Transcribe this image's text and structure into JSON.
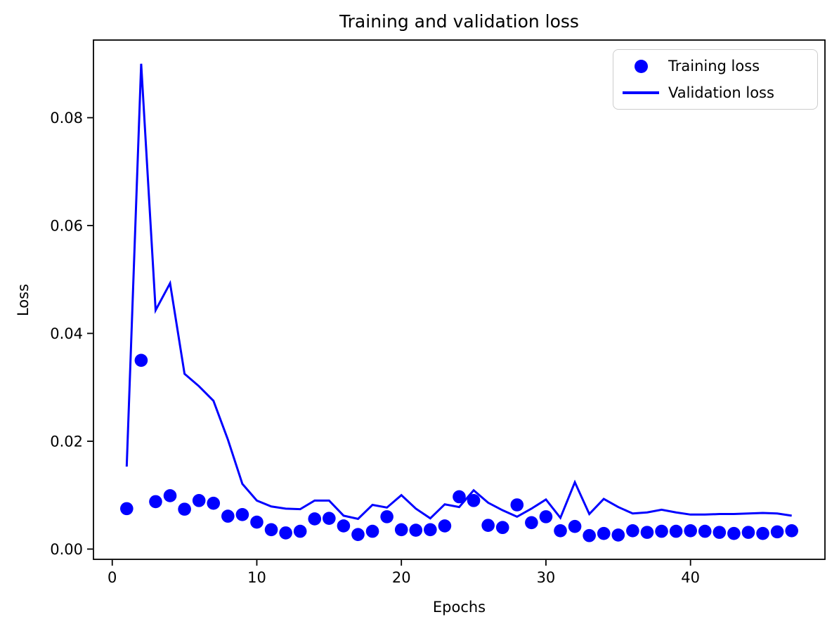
{
  "title": "Training and validation loss",
  "accent_color": "#0000ff",
  "axis_color": "#000000",
  "legend": {
    "entries": [
      {
        "label": "Training loss",
        "marker": "dot"
      },
      {
        "label": "Validation loss",
        "marker": "line"
      }
    ],
    "position": "upper right"
  },
  "chart_data": {
    "type": "scatter+line",
    "title": "Training and validation loss",
    "xlabel": "Epochs",
    "ylabel": "Loss",
    "xlim": [
      -1.3,
      49.3
    ],
    "ylim": [
      -0.0019,
      0.0944
    ],
    "x_ticks": [
      0,
      10,
      20,
      30,
      40
    ],
    "x_tick_labels": [
      "0",
      "10",
      "20",
      "30",
      "40"
    ],
    "y_ticks": [
      0.0,
      0.02,
      0.04,
      0.06,
      0.08
    ],
    "y_tick_labels": [
      "0.00",
      "0.02",
      "0.04",
      "0.06",
      "0.08"
    ],
    "grid": false,
    "legend_position": "upper right",
    "color": "#0000ff",
    "x": [
      1,
      2,
      3,
      4,
      5,
      6,
      7,
      8,
      9,
      10,
      11,
      12,
      13,
      14,
      15,
      16,
      17,
      18,
      19,
      20,
      21,
      22,
      23,
      24,
      25,
      26,
      27,
      28,
      29,
      30,
      31,
      32,
      33,
      34,
      35,
      36,
      37,
      38,
      39,
      40,
      41,
      42,
      43,
      44,
      45,
      46,
      47
    ],
    "series": [
      {
        "name": "Training loss",
        "style": "scatter",
        "values": [
          0.0075,
          0.035,
          0.0088,
          0.0099,
          0.0074,
          0.009,
          0.0085,
          0.0061,
          0.0064,
          0.005,
          0.0036,
          0.003,
          0.0033,
          0.0056,
          0.0057,
          0.0043,
          0.0027,
          0.0033,
          0.006,
          0.0036,
          0.0035,
          0.0036,
          0.0043,
          0.0097,
          0.009,
          0.0044,
          0.004,
          0.0082,
          0.0049,
          0.006,
          0.0034,
          0.0042,
          0.0025,
          0.0029,
          0.0026,
          0.0034,
          0.0031,
          0.0033,
          0.0033,
          0.0034,
          0.0033,
          0.0031,
          0.0029,
          0.0031,
          0.0029,
          0.0032,
          0.0034
        ]
      },
      {
        "name": "Validation loss",
        "style": "line",
        "values": [
          0.0153,
          0.09,
          0.0443,
          0.0493,
          0.0325,
          0.0302,
          0.0275,
          0.0203,
          0.0121,
          0.009,
          0.0079,
          0.0075,
          0.0074,
          0.009,
          0.009,
          0.0062,
          0.0056,
          0.0082,
          0.0077,
          0.01,
          0.0075,
          0.0057,
          0.0083,
          0.0078,
          0.0109,
          0.0086,
          0.0072,
          0.006,
          0.0075,
          0.0092,
          0.0058,
          0.0124,
          0.0065,
          0.0093,
          0.0078,
          0.0066,
          0.0068,
          0.0073,
          0.0068,
          0.0064,
          0.0064,
          0.0065,
          0.0065,
          0.0066,
          0.0067,
          0.0066,
          0.0062
        ]
      }
    ]
  }
}
